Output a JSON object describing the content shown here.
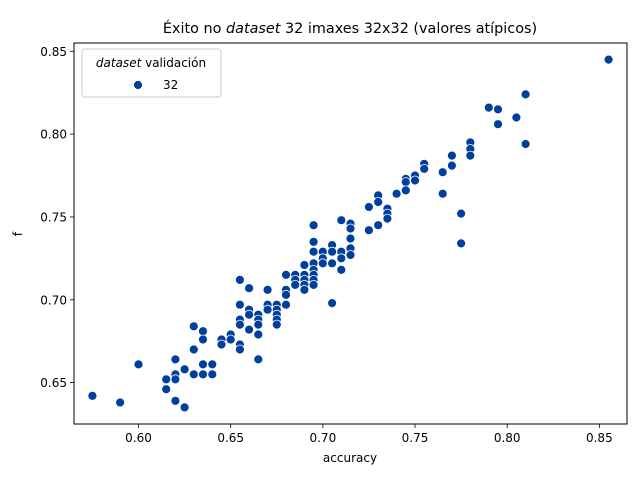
{
  "chart_data": {
    "type": "scatter",
    "title": {
      "prefix": "Éxito no ",
      "emphasis": "dataset",
      "suffix": " 32 imaxes 32x32 (valores atípicos)"
    },
    "xlabel": "accuracy",
    "ylabel": "f",
    "xlim": [
      0.565,
      0.865
    ],
    "ylim": [
      0.625,
      0.855
    ],
    "xticks": [
      0.6,
      0.65,
      0.7,
      0.75,
      0.8,
      0.85
    ],
    "xtick_labels": [
      "0.60",
      "0.65",
      "0.70",
      "0.75",
      "0.80",
      "0.85"
    ],
    "yticks": [
      0.65,
      0.7,
      0.75,
      0.8,
      0.85
    ],
    "ytick_labels": [
      "0.65",
      "0.70",
      "0.75",
      "0.80",
      "0.85"
    ],
    "grid": false,
    "legend": {
      "placement": "top-left",
      "title_emphasis": "dataset",
      "title_suffix": " validación",
      "entries": [
        "32"
      ]
    },
    "series": [
      {
        "name": "32",
        "color": "#003f9e",
        "points": [
          [
            0.575,
            0.642
          ],
          [
            0.59,
            0.638
          ],
          [
            0.6,
            0.661
          ],
          [
            0.615,
            0.646
          ],
          [
            0.615,
            0.652
          ],
          [
            0.62,
            0.664
          ],
          [
            0.62,
            0.655
          ],
          [
            0.62,
            0.652
          ],
          [
            0.62,
            0.639
          ],
          [
            0.625,
            0.658
          ],
          [
            0.625,
            0.635
          ],
          [
            0.63,
            0.684
          ],
          [
            0.63,
            0.67
          ],
          [
            0.63,
            0.655
          ],
          [
            0.635,
            0.681
          ],
          [
            0.635,
            0.676
          ],
          [
            0.635,
            0.661
          ],
          [
            0.635,
            0.655
          ],
          [
            0.64,
            0.661
          ],
          [
            0.64,
            0.655
          ],
          [
            0.645,
            0.676
          ],
          [
            0.645,
            0.673
          ],
          [
            0.65,
            0.679
          ],
          [
            0.65,
            0.676
          ],
          [
            0.655,
            0.712
          ],
          [
            0.655,
            0.697
          ],
          [
            0.655,
            0.688
          ],
          [
            0.655,
            0.685
          ],
          [
            0.655,
            0.673
          ],
          [
            0.655,
            0.67
          ],
          [
            0.66,
            0.707
          ],
          [
            0.66,
            0.694
          ],
          [
            0.66,
            0.691
          ],
          [
            0.66,
            0.682
          ],
          [
            0.665,
            0.691
          ],
          [
            0.665,
            0.688
          ],
          [
            0.665,
            0.685
          ],
          [
            0.665,
            0.679
          ],
          [
            0.665,
            0.664
          ],
          [
            0.67,
            0.706
          ],
          [
            0.67,
            0.697
          ],
          [
            0.67,
            0.694
          ],
          [
            0.675,
            0.697
          ],
          [
            0.675,
            0.694
          ],
          [
            0.675,
            0.691
          ],
          [
            0.675,
            0.688
          ],
          [
            0.675,
            0.685
          ],
          [
            0.68,
            0.715
          ],
          [
            0.68,
            0.706
          ],
          [
            0.68,
            0.703
          ],
          [
            0.68,
            0.697
          ],
          [
            0.685,
            0.715
          ],
          [
            0.685,
            0.712
          ],
          [
            0.685,
            0.709
          ],
          [
            0.69,
            0.721
          ],
          [
            0.69,
            0.715
          ],
          [
            0.69,
            0.712
          ],
          [
            0.69,
            0.709
          ],
          [
            0.69,
            0.706
          ],
          [
            0.695,
            0.745
          ],
          [
            0.695,
            0.735
          ],
          [
            0.695,
            0.729
          ],
          [
            0.695,
            0.722
          ],
          [
            0.695,
            0.718
          ],
          [
            0.695,
            0.715
          ],
          [
            0.695,
            0.712
          ],
          [
            0.695,
            0.709
          ],
          [
            0.7,
            0.729
          ],
          [
            0.7,
            0.725
          ],
          [
            0.7,
            0.722
          ],
          [
            0.705,
            0.733
          ],
          [
            0.705,
            0.729
          ],
          [
            0.705,
            0.722
          ],
          [
            0.705,
            0.698
          ],
          [
            0.71,
            0.748
          ],
          [
            0.71,
            0.729
          ],
          [
            0.71,
            0.725
          ],
          [
            0.71,
            0.718
          ],
          [
            0.715,
            0.746
          ],
          [
            0.715,
            0.743
          ],
          [
            0.715,
            0.737
          ],
          [
            0.715,
            0.731
          ],
          [
            0.715,
            0.727
          ],
          [
            0.725,
            0.756
          ],
          [
            0.725,
            0.742
          ],
          [
            0.73,
            0.763
          ],
          [
            0.73,
            0.759
          ],
          [
            0.73,
            0.745
          ],
          [
            0.735,
            0.755
          ],
          [
            0.735,
            0.752
          ],
          [
            0.735,
            0.749
          ],
          [
            0.74,
            0.764
          ],
          [
            0.745,
            0.773
          ],
          [
            0.745,
            0.771
          ],
          [
            0.745,
            0.766
          ],
          [
            0.75,
            0.775
          ],
          [
            0.75,
            0.772
          ],
          [
            0.755,
            0.782
          ],
          [
            0.755,
            0.779
          ],
          [
            0.765,
            0.777
          ],
          [
            0.765,
            0.764
          ],
          [
            0.77,
            0.787
          ],
          [
            0.77,
            0.781
          ],
          [
            0.775,
            0.752
          ],
          [
            0.775,
            0.734
          ],
          [
            0.78,
            0.795
          ],
          [
            0.78,
            0.791
          ],
          [
            0.78,
            0.787
          ],
          [
            0.79,
            0.816
          ],
          [
            0.795,
            0.815
          ],
          [
            0.795,
            0.806
          ],
          [
            0.805,
            0.81
          ],
          [
            0.81,
            0.824
          ],
          [
            0.81,
            0.794
          ],
          [
            0.855,
            0.845
          ]
        ]
      }
    ]
  }
}
